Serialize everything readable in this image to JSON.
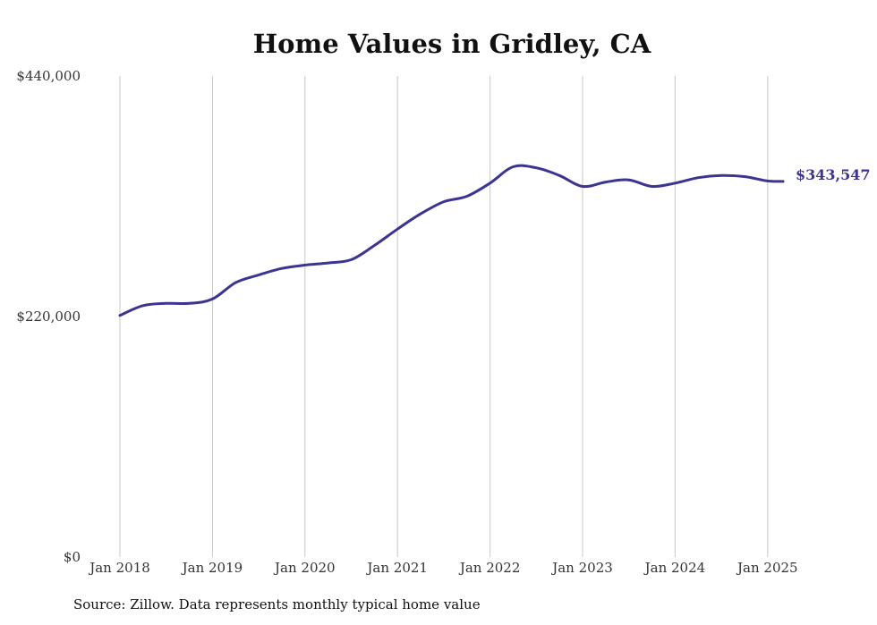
{
  "chart_data": {
    "type": "line",
    "title": "Home Values in Gridley, CA",
    "xlabel": "",
    "ylabel": "",
    "ylim": [
      0,
      440000
    ],
    "y_ticks": [
      0,
      220000,
      440000
    ],
    "y_tick_labels": [
      "$0",
      "$220,000",
      "$440,000"
    ],
    "x_tick_labels": [
      "Jan 2018",
      "Jan 2019",
      "Jan 2020",
      "Jan 2021",
      "Jan 2022",
      "Jan 2023",
      "Jan 2024",
      "Jan 2025"
    ],
    "x_tick_positions": [
      "2018-01",
      "2019-01",
      "2020-01",
      "2021-01",
      "2022-01",
      "2023-01",
      "2024-01",
      "2025-01"
    ],
    "grid": {
      "vertical": true,
      "horizontal": false
    },
    "series": [
      {
        "color": "#3b3491",
        "x": [
          "2018-01",
          "2018-04",
          "2018-07",
          "2018-10",
          "2019-01",
          "2019-04",
          "2019-07",
          "2019-10",
          "2020-01",
          "2020-04",
          "2020-07",
          "2020-10",
          "2021-01",
          "2021-04",
          "2021-07",
          "2021-10",
          "2022-01",
          "2022-04",
          "2022-07",
          "2022-10",
          "2023-01",
          "2023-04",
          "2023-07",
          "2023-10",
          "2024-01",
          "2024-04",
          "2024-07",
          "2024-10",
          "2025-01",
          "2025-03"
        ],
        "values": [
          221000,
          230000,
          232000,
          232000,
          236000,
          251000,
          258000,
          264000,
          267000,
          269000,
          272000,
          285000,
          300000,
          314000,
          325000,
          330000,
          342000,
          357000,
          356000,
          349000,
          339000,
          343000,
          345000,
          339000,
          342000,
          347000,
          349000,
          348000,
          344000,
          343547
        ]
      }
    ],
    "end_label": "$343,547"
  },
  "source_text": "Source: Zillow. Data represents monthly typical home value"
}
